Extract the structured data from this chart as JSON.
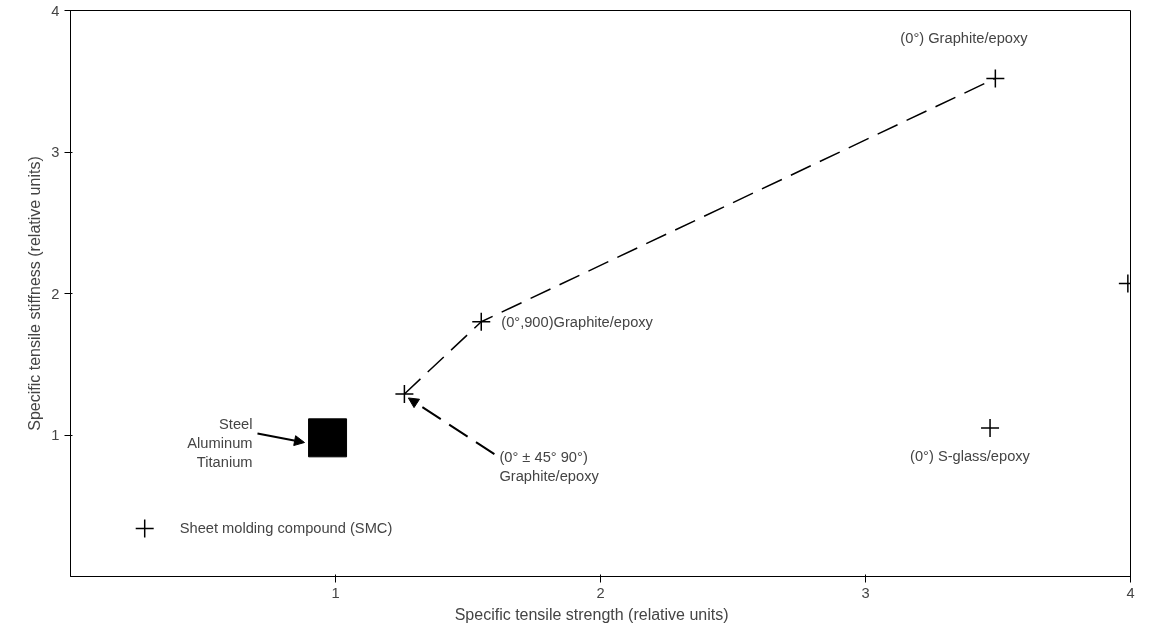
{
  "chart_data": {
    "type": "scatter",
    "xlabel": "Specific  tensile  strength  (relative  units)",
    "ylabel": "Specific tensile stiffness (relative units)",
    "xlim": [
      0,
      4
    ],
    "ylim": [
      0,
      4
    ],
    "xticks": [
      1,
      2,
      3,
      4
    ],
    "yticks": [
      1,
      2,
      3,
      4
    ],
    "grid": false,
    "series": [
      {
        "type": "line",
        "color": "#000000",
        "line_style": "dashed",
        "x": [
          1.26,
          1.55,
          3.49
        ],
        "values": [
          1.29,
          1.8,
          3.52
        ]
      },
      {
        "color": "#000000",
        "marker": "cross",
        "x": [
          3.49,
          3.99,
          1.55,
          1.26,
          3.47,
          0.28
        ],
        "values": [
          3.52,
          2.07,
          1.8,
          1.29,
          1.05,
          0.34
        ]
      },
      {
        "color": "#000000",
        "marker": "square",
        "x": [
          0.97
        ],
        "values": [
          0.98
        ]
      }
    ],
    "annotations": [
      {
        "text": "(0°)   Graphite/epoxy",
        "x": 3.49,
        "y": 3.52
      },
      {
        "text": "(0°,900)Graphite/epoxy",
        "x": 1.55,
        "y": 1.8
      },
      {
        "text": "(0° ± 45° 90°)\nGraphite/epoxy",
        "x": 1.26,
        "y": 1.29
      },
      "Steel\nAluminum\nTitanium",
      {
        "text": "(0°) S-glass/epoxy",
        "x": 3.47,
        "y": 1.05
      },
      {
        "text": "Sheet  molding  compound  (SMC)",
        "x": 0.28,
        "y": 0.34
      }
    ]
  }
}
